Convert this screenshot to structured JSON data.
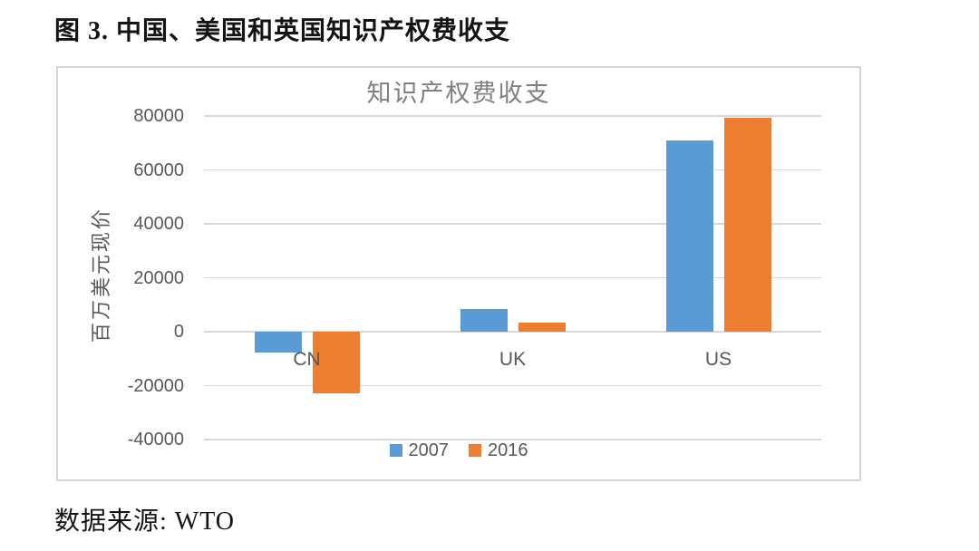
{
  "page": {
    "title": "图 3. 中国、美国和英国知识产权费收支",
    "source": "数据来源: WTO"
  },
  "chart_data": {
    "type": "bar",
    "title": "知识产权费收支",
    "ylabel": "百万美元现价",
    "xlabel": "",
    "categories": [
      "CN",
      "UK",
      "US"
    ],
    "series": [
      {
        "name": "2007",
        "color": "#5B9BD5",
        "values": [
          -7800,
          8400,
          71000
        ]
      },
      {
        "name": "2016",
        "color": "#ED7D31",
        "values": [
          -23000,
          3500,
          79400
        ]
      }
    ],
    "ylim": [
      -40000,
      80000
    ],
    "yticks": [
      80000,
      60000,
      40000,
      20000,
      0,
      -20000,
      -40000
    ],
    "grid": true,
    "legend_position": "bottom",
    "colors": {
      "grid": "#D9D9D9",
      "axis_text": "#595959",
      "chart_title_text": "#808080",
      "chart_border": "#D5D5DC"
    }
  }
}
